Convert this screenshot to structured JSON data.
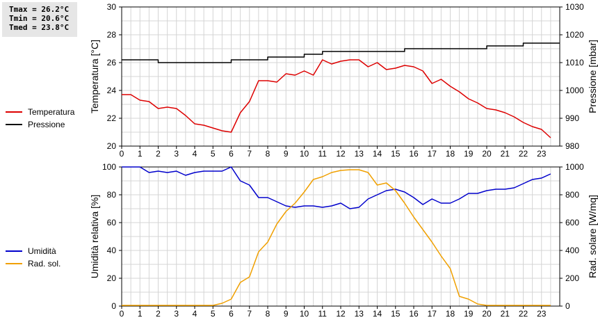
{
  "stats": {
    "tmax": "Tmax = 26.2°C",
    "tmin": "Tmin = 20.6°C",
    "tmed": "Tmed = 23.8°C"
  },
  "colors": {
    "temperature": "#dd0000",
    "pressure": "#000000",
    "humidity": "#0000cc",
    "solar": "#f0a000",
    "grid": "#d4d4d4"
  },
  "chart_data": [
    {
      "type": "line",
      "ylabel": "Temperatura [°C]",
      "y2label": "Pressione [mbar]",
      "xlim": [
        0,
        24
      ],
      "ylim": [
        20,
        30
      ],
      "y2lim": [
        980,
        1030
      ],
      "xticks": [
        "0",
        "1",
        "2",
        "3",
        "4",
        "5",
        "6",
        "7",
        "8",
        "9",
        "10",
        "11",
        "12",
        "13",
        "14",
        "15",
        "16",
        "17",
        "18",
        "19",
        "20",
        "21",
        "22",
        "23"
      ],
      "yticks": [
        "20",
        "22",
        "24",
        "26",
        "28",
        "30"
      ],
      "y2ticks": [
        "980",
        "990",
        "1000",
        "1010",
        "1020",
        "1030"
      ],
      "grid": true,
      "legend_position": "left",
      "series": [
        {
          "name": "Temperatura",
          "axis": "left",
          "x": [
            0,
            0.5,
            1,
            1.5,
            2,
            2.5,
            3,
            3.5,
            4,
            4.5,
            5,
            5.5,
            6,
            6.5,
            7,
            7.5,
            8,
            8.5,
            9,
            9.5,
            10,
            10.5,
            11,
            11.5,
            12,
            12.5,
            13,
            13.5,
            14,
            14.5,
            15,
            15.5,
            16,
            16.5,
            17,
            17.5,
            18,
            18.5,
            19,
            19.5,
            20,
            20.5,
            21,
            21.5,
            22,
            22.5,
            23,
            23.5
          ],
          "y": [
            23.7,
            23.7,
            23.3,
            23.2,
            22.7,
            22.8,
            22.7,
            22.2,
            21.6,
            21.5,
            21.3,
            21.1,
            21.0,
            22.4,
            23.2,
            24.7,
            24.7,
            24.6,
            25.2,
            25.1,
            25.4,
            25.1,
            26.2,
            25.9,
            26.1,
            26.2,
            26.2,
            25.7,
            26.0,
            25.5,
            25.6,
            25.8,
            25.7,
            25.4,
            24.5,
            24.8,
            24.3,
            23.9,
            23.4,
            23.1,
            22.7,
            22.6,
            22.4,
            22.1,
            21.7,
            21.4,
            21.2,
            20.6
          ]
        },
        {
          "name": "Pressione",
          "axis": "right",
          "x": [
            0,
            0.5,
            1,
            1.5,
            2,
            2.5,
            3,
            3.5,
            4,
            4.5,
            5,
            5.5,
            6,
            6.5,
            7,
            7.5,
            8,
            8.5,
            9,
            9.5,
            10,
            10.5,
            11,
            11.5,
            12,
            12.5,
            13,
            13.5,
            14,
            14.5,
            15,
            15.5,
            16,
            16.5,
            17,
            17.5,
            18,
            18.5,
            19,
            19.5,
            20,
            20.5,
            21,
            21.5,
            22,
            22.5,
            23,
            23.5
          ],
          "y": [
            1011,
            1011,
            1011,
            1011,
            1010,
            1010,
            1010,
            1010,
            1010,
            1010,
            1010,
            1010,
            1011,
            1011,
            1011,
            1011,
            1012,
            1012,
            1012,
            1012,
            1013,
            1013,
            1014,
            1014,
            1014,
            1014,
            1014,
            1014,
            1014,
            1014,
            1014,
            1015,
            1015,
            1015,
            1015,
            1015,
            1015,
            1015,
            1015,
            1015,
            1016,
            1016,
            1016,
            1016,
            1017,
            1017,
            1017,
            1017
          ]
        }
      ]
    },
    {
      "type": "line",
      "ylabel": "Umidità relativa [%]",
      "y2label": "Rad. solare [W/mq]",
      "xlim": [
        0,
        24
      ],
      "ylim": [
        0,
        100
      ],
      "y2lim": [
        0,
        1000
      ],
      "xticks": [
        "0",
        "1",
        "2",
        "3",
        "4",
        "5",
        "6",
        "7",
        "8",
        "9",
        "10",
        "11",
        "12",
        "13",
        "14",
        "15",
        "16",
        "17",
        "18",
        "19",
        "20",
        "21",
        "22",
        "23"
      ],
      "yticks": [
        "0",
        "20",
        "40",
        "60",
        "80",
        "100"
      ],
      "y2ticks": [
        "0",
        "200",
        "400",
        "600",
        "800",
        "1000"
      ],
      "grid": true,
      "legend_position": "left",
      "series": [
        {
          "name": "Umidità",
          "axis": "left",
          "x": [
            0,
            0.5,
            1,
            1.5,
            2,
            2.5,
            3,
            3.5,
            4,
            4.5,
            5,
            5.5,
            6,
            6.5,
            7,
            7.5,
            8,
            8.5,
            9,
            9.5,
            10,
            10.5,
            11,
            11.5,
            12,
            12.5,
            13,
            13.5,
            14,
            14.5,
            15,
            15.5,
            16,
            16.5,
            17,
            17.5,
            18,
            18.5,
            19,
            19.5,
            20,
            20.5,
            21,
            21.5,
            22,
            22.5,
            23,
            23.5
          ],
          "y": [
            100,
            100,
            100,
            96,
            97,
            96,
            97,
            94,
            96,
            97,
            97,
            97,
            100,
            90,
            87,
            78,
            78,
            75,
            72,
            71,
            72,
            72,
            71,
            72,
            74,
            70,
            71,
            77,
            80,
            83,
            84,
            82,
            78,
            73,
            77,
            74,
            74,
            77,
            81,
            81,
            83,
            84,
            84,
            85,
            88,
            91,
            92,
            95
          ]
        },
        {
          "name": "Rad. sol.",
          "axis": "right",
          "x": [
            0,
            0.5,
            1,
            1.5,
            2,
            2.5,
            3,
            3.5,
            4,
            4.5,
            5,
            5.5,
            6,
            6.5,
            7,
            7.5,
            8,
            8.5,
            9,
            9.5,
            10,
            10.5,
            11,
            11.5,
            12,
            12.5,
            13,
            13.5,
            14,
            14.5,
            15,
            15.5,
            16,
            16.5,
            17,
            17.5,
            18,
            18.5,
            19,
            19.5,
            20,
            20.5,
            21,
            21.5,
            22,
            22.5,
            23,
            23.5
          ],
          "y": [
            5,
            5,
            5,
            5,
            5,
            5,
            5,
            5,
            5,
            5,
            5,
            20,
            50,
            170,
            210,
            390,
            460,
            590,
            680,
            740,
            820,
            910,
            930,
            960,
            975,
            980,
            980,
            960,
            870,
            885,
            830,
            740,
            640,
            550,
            460,
            360,
            270,
            70,
            50,
            15,
            5,
            5,
            5,
            5,
            5,
            5,
            5,
            5
          ]
        }
      ]
    }
  ]
}
